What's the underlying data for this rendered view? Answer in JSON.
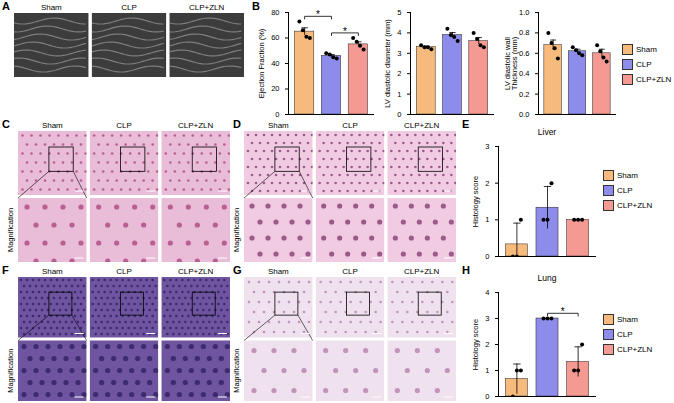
{
  "figure": {
    "panel_letters": [
      "A",
      "B",
      "C",
      "D",
      "E",
      "F",
      "G",
      "H"
    ],
    "image_panels": [
      {
        "columns": [
          "Sham",
          "CLP",
          "CLP+ZLN"
        ]
      },
      {
        "columns": [
          "Sham",
          "CLP",
          "CLP+ZLN"
        ],
        "row_label": "Magnification"
      },
      {
        "columns": [
          "Sham",
          "CLP",
          "CLP+ZLN"
        ],
        "row_label": "Magnification"
      },
      {
        "columns": [
          "Sham",
          "CLP",
          "CLP+ZLN"
        ],
        "row_label": "Magnification"
      },
      {
        "columns": [
          "Sham",
          "CLP",
          "CLP+ZLN"
        ],
        "row_label": "Magnification"
      }
    ]
  },
  "chart_data": [
    {
      "type": "bar",
      "ylabel": "Ejection Fraction (%)",
      "categories": [
        "Sham",
        "CLP",
        "CLP+ZLN"
      ],
      "values": [
        65,
        46,
        55
      ],
      "errors": [
        3,
        1,
        2
      ],
      "points": [
        [
          73,
          66,
          61,
          60
        ],
        [
          48,
          47,
          45,
          44
        ],
        [
          60,
          57,
          54,
          51
        ]
      ],
      "colors": [
        "#F7BA7D",
        "#8E8CEB",
        "#F49A93"
      ],
      "ylim": [
        0,
        80
      ],
      "yticks": [
        0,
        20,
        40,
        60,
        80
      ],
      "significance": [
        {
          "between": [
            "Sham",
            "CLP"
          ],
          "label": "*"
        },
        {
          "between": [
            "CLP",
            "CLP+ZLN"
          ],
          "label": "*"
        }
      ],
      "tick_labels": "y"
    },
    {
      "type": "bar",
      "ylabel": "LV diastolic diameter (mm)",
      "categories": [
        "Sham",
        "CLP",
        "CLP+ZLN"
      ],
      "values": [
        3.3,
        3.9,
        3.6
      ],
      "errors": [
        0.05,
        0.12,
        0.17
      ],
      "points": [
        [
          3.4,
          3.3,
          3.3,
          3.2
        ],
        [
          4.2,
          3.9,
          3.8,
          3.6
        ],
        [
          4.0,
          3.7,
          3.4,
          3.3
        ]
      ],
      "colors": [
        "#F7BA7D",
        "#8E8CEB",
        "#F49A93"
      ],
      "ylim": [
        0,
        5
      ],
      "yticks": [
        0,
        1,
        2,
        3,
        4,
        5
      ],
      "tick_labels": "y"
    },
    {
      "type": "bar",
      "ylabel": "LV diastolic wall\nThickness (mm)",
      "categories": [
        "Sham",
        "CLP",
        "CLP+ZLN"
      ],
      "values": [
        0.68,
        0.62,
        0.6
      ],
      "errors": [
        0.05,
        0.02,
        0.04
      ],
      "points": [
        [
          0.8,
          0.7,
          0.65,
          0.55
        ],
        [
          0.66,
          0.63,
          0.6,
          0.58
        ],
        [
          0.68,
          0.62,
          0.56,
          0.52
        ]
      ],
      "colors": [
        "#F7BA7D",
        "#8E8CEB",
        "#F49A93"
      ],
      "ylim": [
        0,
        1
      ],
      "yticks": [
        {
          "value": 0,
          "label": "0.0"
        },
        0.2,
        0.4,
        0.6,
        0.8,
        {
          "value": 1,
          "label": "1.0"
        }
      ],
      "tick_labels": "y",
      "legend": "right"
    },
    {
      "type": "bar",
      "title": "Liver",
      "ylabel": "Histology score",
      "categories": [
        "Sham",
        "CLP",
        "CLP+ZLN"
      ],
      "values": [
        0.33,
        1.33,
        1
      ],
      "errors": [
        0.58,
        0.58,
        0
      ],
      "points": [
        [
          0,
          0,
          1
        ],
        [
          1,
          1,
          2
        ],
        [
          1,
          1,
          1
        ]
      ],
      "colors": [
        "#F7BA7D",
        "#8E8CEB",
        "#F49A93"
      ],
      "ylim": [
        0,
        3
      ],
      "yticks": [
        0,
        1,
        2,
        3
      ],
      "tick_labels": "y",
      "legend": "right"
    },
    {
      "type": "bar",
      "title": "Lung",
      "ylabel": "Histology score",
      "categories": [
        "Sham",
        "CLP",
        "CLP+ZLN"
      ],
      "values": [
        0.67,
        3,
        1.33
      ],
      "errors": [
        0.58,
        0,
        0.58
      ],
      "points": [
        [
          0,
          1,
          1
        ],
        [
          3,
          3,
          3
        ],
        [
          1,
          1,
          2
        ]
      ],
      "colors": [
        "#F7BA7D",
        "#8E8CEB",
        "#F49A93"
      ],
      "ylim": [
        0,
        4
      ],
      "yticks": [
        0,
        1,
        2,
        3,
        4
      ],
      "significance": [
        {
          "between": [
            "CLP",
            "CLP+ZLN"
          ],
          "label": "*"
        }
      ],
      "tick_labels": "y",
      "legend": "right"
    }
  ]
}
